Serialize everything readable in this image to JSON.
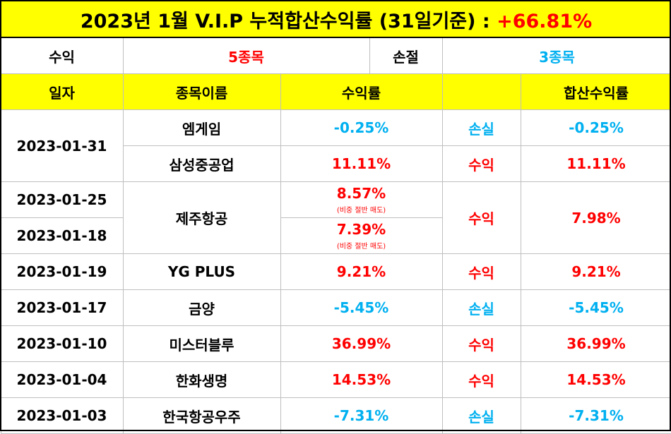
{
  "title": {
    "prefix": "2023년 1월 V.I.P 누적합산수익률 (31일기준) : ",
    "total": "+66.81%"
  },
  "summary": {
    "profit_label": "수익",
    "profit_count": "5종목",
    "loss_label": "손절",
    "loss_count": "3종목"
  },
  "headers": {
    "date": "일자",
    "name": "종목이름",
    "return": "수익률",
    "result": "",
    "combined": "합산수익률"
  },
  "rows": [
    {
      "date": "2023-01-31",
      "name": "엠게임",
      "return": "-0.25%",
      "result": "손실",
      "combined": "-0.25%"
    },
    {
      "date": "",
      "name": "삼성중공업",
      "return": "11.11%",
      "result": "수익",
      "combined": "11.11%"
    },
    {
      "date": "2023-01-25",
      "name": "제주항공",
      "return": "8.57%",
      "note": "(비중 절반 매도)",
      "result": "수익",
      "combined": "7.98%"
    },
    {
      "date": "2023-01-18",
      "name": "",
      "return": "7.39%",
      "note": "(비중 절반 매도)",
      "result": "",
      "combined": ""
    },
    {
      "date": "2023-01-19",
      "name": "YG PLUS",
      "return": "9.21%",
      "result": "수익",
      "combined": "9.21%"
    },
    {
      "date": "2023-01-17",
      "name": "금양",
      "return": "-5.45%",
      "result": "손실",
      "combined": "-5.45%"
    },
    {
      "date": "2023-01-10",
      "name": "미스터블루",
      "return": "36.99%",
      "result": "수익",
      "combined": "36.99%"
    },
    {
      "date": "2023-01-04",
      "name": "한화생명",
      "return": "14.53%",
      "result": "수익",
      "combined": "14.53%"
    },
    {
      "date": "2023-01-03",
      "name": "한국항공우주",
      "return": "-7.31%",
      "result": "손실",
      "combined": "-7.31%"
    }
  ],
  "colors": {
    "header_bg": "#ffff00",
    "profit": "#ff0000",
    "loss": "#00b0f0",
    "border": "#bfbfbf"
  }
}
